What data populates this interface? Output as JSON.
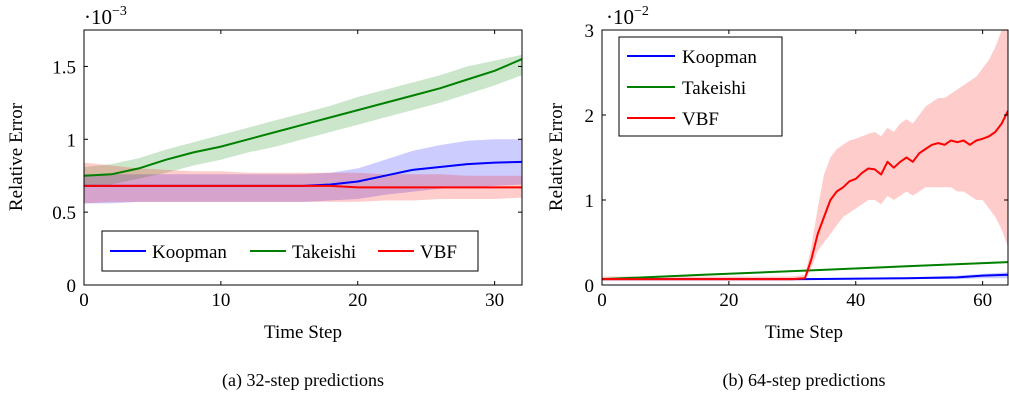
{
  "chart_data": [
    {
      "type": "line",
      "caption": "(a) 32-step predictions",
      "xlabel": "Time Step",
      "ylabel": "Relative Error",
      "y_multiplier_label": "·10",
      "y_multiplier_exp": "−3",
      "xlim": [
        0,
        32
      ],
      "ylim": [
        0,
        1.75
      ],
      "xticks": [
        0,
        10,
        20,
        30
      ],
      "xtick_labels": [
        "0",
        "10",
        "20",
        "30"
      ],
      "yticks": [
        0,
        0.5,
        1,
        1.5
      ],
      "ytick_labels": [
        "0",
        "0.5",
        "1",
        "1.5"
      ],
      "legend_position": "bottom-center",
      "legend_layout": "horizontal",
      "x": [
        0,
        2,
        4,
        6,
        8,
        10,
        12,
        14,
        16,
        18,
        20,
        22,
        24,
        26,
        28,
        30,
        32
      ],
      "series": [
        {
          "name": "Koopman",
          "color": "#0000ff",
          "values": [
            0.68,
            0.68,
            0.68,
            0.68,
            0.68,
            0.68,
            0.68,
            0.68,
            0.68,
            0.69,
            0.71,
            0.75,
            0.79,
            0.81,
            0.83,
            0.84,
            0.845
          ],
          "lower": [
            0.56,
            0.56,
            0.57,
            0.57,
            0.57,
            0.57,
            0.57,
            0.57,
            0.57,
            0.58,
            0.59,
            0.62,
            0.64,
            0.66,
            0.67,
            0.68,
            0.69
          ],
          "upper": [
            0.76,
            0.76,
            0.76,
            0.76,
            0.76,
            0.76,
            0.76,
            0.76,
            0.76,
            0.77,
            0.8,
            0.86,
            0.92,
            0.96,
            0.99,
            1.0,
            1.0
          ]
        },
        {
          "name": "Takeishi",
          "color": "#008000",
          "values": [
            0.75,
            0.76,
            0.8,
            0.86,
            0.91,
            0.95,
            1.0,
            1.05,
            1.1,
            1.15,
            1.2,
            1.25,
            1.3,
            1.35,
            1.41,
            1.47,
            1.55
          ],
          "lower": [
            0.68,
            0.69,
            0.73,
            0.77,
            0.82,
            0.86,
            0.91,
            0.95,
            1.0,
            1.05,
            1.1,
            1.15,
            1.2,
            1.25,
            1.31,
            1.37,
            1.44
          ],
          "upper": [
            0.81,
            0.83,
            0.87,
            0.93,
            0.98,
            1.03,
            1.08,
            1.13,
            1.18,
            1.23,
            1.29,
            1.34,
            1.39,
            1.44,
            1.5,
            1.54,
            1.58
          ]
        },
        {
          "name": "VBF",
          "color": "#ff0000",
          "values": [
            0.68,
            0.68,
            0.68,
            0.68,
            0.68,
            0.68,
            0.68,
            0.68,
            0.68,
            0.68,
            0.67,
            0.67,
            0.67,
            0.67,
            0.67,
            0.67,
            0.67
          ],
          "lower": [
            0.56,
            0.57,
            0.57,
            0.57,
            0.57,
            0.57,
            0.57,
            0.57,
            0.57,
            0.57,
            0.57,
            0.58,
            0.58,
            0.59,
            0.59,
            0.59,
            0.6
          ],
          "upper": [
            0.84,
            0.82,
            0.8,
            0.79,
            0.78,
            0.78,
            0.77,
            0.77,
            0.77,
            0.77,
            0.77,
            0.76,
            0.76,
            0.76,
            0.75,
            0.75,
            0.75
          ]
        }
      ]
    },
    {
      "type": "line",
      "caption": "(b) 64-step predictions",
      "xlabel": "Time Step",
      "ylabel": "Relative Error",
      "y_multiplier_label": "·10",
      "y_multiplier_exp": "−2",
      "xlim": [
        0,
        64
      ],
      "ylim": [
        0,
        3
      ],
      "xticks": [
        0,
        20,
        40,
        60
      ],
      "xtick_labels": [
        "0",
        "20",
        "40",
        "60"
      ],
      "yticks": [
        0,
        1,
        2,
        3
      ],
      "ytick_labels": [
        "0",
        "1",
        "2",
        "3"
      ],
      "legend_position": "top-left",
      "legend_layout": "vertical",
      "series": [
        {
          "name": "Koopman",
          "color": "#0000ff",
          "x": [
            0,
            16,
            32,
            48,
            56,
            60,
            64
          ],
          "values": [
            0.07,
            0.07,
            0.07,
            0.08,
            0.09,
            0.11,
            0.12
          ],
          "lower": [
            0.06,
            0.06,
            0.06,
            0.07,
            0.07,
            0.08,
            0.08
          ],
          "upper": [
            0.08,
            0.08,
            0.08,
            0.09,
            0.11,
            0.13,
            0.15
          ]
        },
        {
          "name": "Takeishi",
          "color": "#008000",
          "x": [
            0,
            16,
            32,
            48,
            64
          ],
          "values": [
            0.07,
            0.12,
            0.17,
            0.22,
            0.27
          ],
          "lower": [
            0.07,
            0.11,
            0.16,
            0.21,
            0.26
          ],
          "upper": [
            0.08,
            0.13,
            0.18,
            0.23,
            0.28
          ]
        },
        {
          "name": "VBF",
          "color": "#ff0000",
          "x": [
            0,
            8,
            16,
            24,
            30,
            32,
            33,
            34,
            35,
            36,
            37,
            38,
            39,
            40,
            41,
            42,
            43,
            44,
            45,
            46,
            47,
            48,
            49,
            50,
            51,
            52,
            53,
            54,
            55,
            56,
            57,
            58,
            59,
            60,
            61,
            62,
            63,
            64
          ],
          "values": [
            0.07,
            0.07,
            0.07,
            0.07,
            0.07,
            0.08,
            0.3,
            0.6,
            0.8,
            1.0,
            1.1,
            1.15,
            1.22,
            1.25,
            1.32,
            1.37,
            1.36,
            1.3,
            1.45,
            1.38,
            1.45,
            1.5,
            1.45,
            1.55,
            1.6,
            1.65,
            1.67,
            1.65,
            1.7,
            1.68,
            1.7,
            1.65,
            1.7,
            1.72,
            1.75,
            1.8,
            1.9,
            2.05
          ],
          "lower": [
            0.05,
            0.05,
            0.05,
            0.05,
            0.05,
            0.06,
            0.2,
            0.4,
            0.5,
            0.6,
            0.7,
            0.8,
            0.85,
            0.9,
            0.95,
            1.0,
            1.0,
            0.95,
            1.05,
            1.0,
            1.05,
            1.1,
            1.05,
            1.1,
            1.15,
            1.15,
            1.15,
            1.15,
            1.15,
            1.1,
            1.1,
            1.05,
            1.0,
            1.0,
            0.9,
            0.8,
            0.65,
            0.45
          ],
          "upper": [
            0.1,
            0.1,
            0.1,
            0.1,
            0.1,
            0.12,
            0.45,
            0.9,
            1.3,
            1.5,
            1.6,
            1.65,
            1.7,
            1.72,
            1.75,
            1.78,
            1.8,
            1.75,
            1.85,
            1.8,
            1.9,
            1.95,
            1.9,
            2.0,
            2.1,
            2.15,
            2.2,
            2.2,
            2.25,
            2.3,
            2.35,
            2.4,
            2.45,
            2.55,
            2.65,
            2.8,
            3.0,
            3.1
          ]
        }
      ]
    }
  ]
}
